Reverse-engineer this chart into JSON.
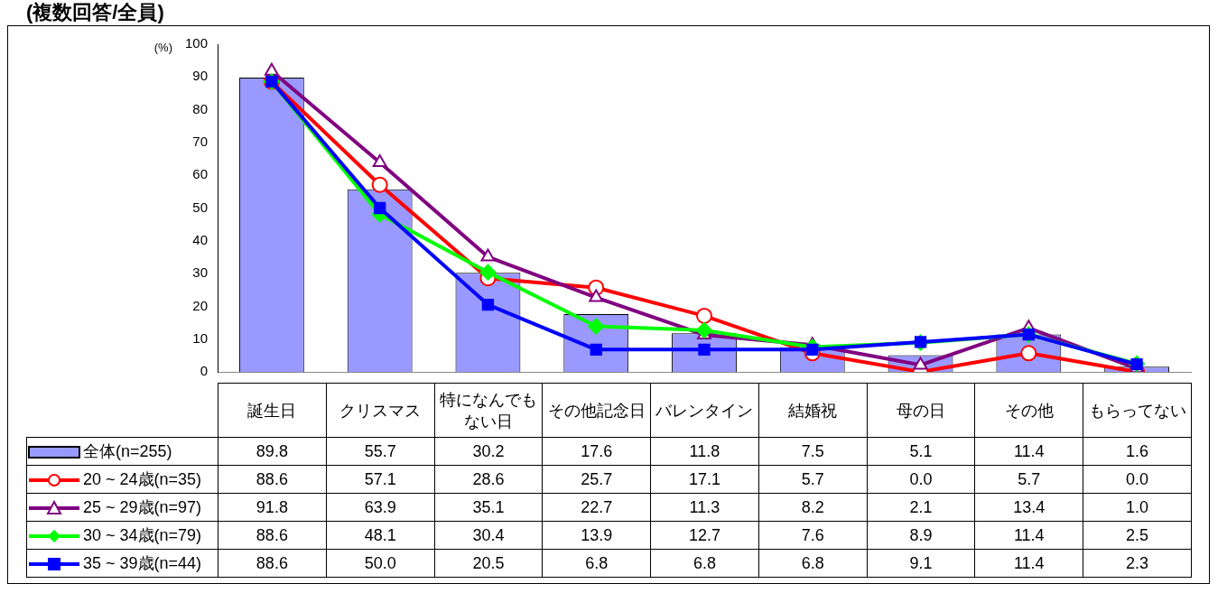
{
  "chart_data": {
    "type": "bar",
    "title": "(複数回答/全員)",
    "ylabel": "(%)",
    "categories": [
      "誕生日",
      "クリスマス",
      "特になんでもない日",
      "その他記念日",
      "バレンタイン",
      "結婚祝",
      "母の日",
      "その他",
      "もらってない"
    ],
    "series": [
      {
        "name": "全体(n=255)",
        "color": "#9999ff",
        "values": [
          89.8,
          55.7,
          30.2,
          17.6,
          11.8,
          7.5,
          5.1,
          11.4,
          1.6
        ],
        "value_labels": [
          "89.8",
          "55.7",
          "30.2",
          "17.6",
          "11.8",
          "7.5",
          "5.1",
          "11.4",
          "1.6"
        ]
      },
      {
        "name": "20 ~ 24歳(n=35)",
        "type": "line",
        "color": "#ff0000",
        "marker": "circle",
        "values": [
          88.6,
          57.1,
          28.6,
          25.7,
          17.1,
          5.7,
          0.0,
          5.7,
          0.0
        ],
        "value_labels": [
          "88.6",
          "57.1",
          "28.6",
          "25.7",
          "17.1",
          "5.7",
          "0.0",
          "5.7",
          "0.0"
        ]
      },
      {
        "name": "25 ~ 29歳(n=97)",
        "type": "line",
        "color": "#800080",
        "marker": "triangle",
        "values": [
          91.8,
          63.9,
          35.1,
          22.7,
          11.3,
          8.2,
          2.1,
          13.4,
          1.0
        ],
        "value_labels": [
          "91.8",
          "63.9",
          "35.1",
          "22.7",
          "11.3",
          "8.2",
          "2.1",
          "13.4",
          "1.0"
        ]
      },
      {
        "name": "30 ~ 34歳(n=79)",
        "type": "line",
        "color": "#00ff00",
        "marker": "diamond",
        "values": [
          88.6,
          48.1,
          30.4,
          13.9,
          12.7,
          7.6,
          8.9,
          11.4,
          2.5
        ],
        "value_labels": [
          "88.6",
          "48.1",
          "30.4",
          "13.9",
          "12.7",
          "7.6",
          "8.9",
          "11.4",
          "2.5"
        ]
      },
      {
        "name": "35 ~ 39歳(n=44)",
        "type": "line",
        "color": "#0000ff",
        "marker": "square",
        "values": [
          88.6,
          50.0,
          20.5,
          6.8,
          6.8,
          6.8,
          9.1,
          11.4,
          2.3
        ],
        "value_labels": [
          "88.6",
          "50.0",
          "20.5",
          "6.8",
          "6.8",
          "6.8",
          "9.1",
          "11.4",
          "2.3"
        ]
      }
    ],
    "ylim": [
      0,
      100
    ],
    "yticks": [
      0,
      10,
      20,
      30,
      40,
      50,
      60,
      70,
      80,
      90,
      100
    ],
    "grid": false,
    "legend": "bottom"
  }
}
